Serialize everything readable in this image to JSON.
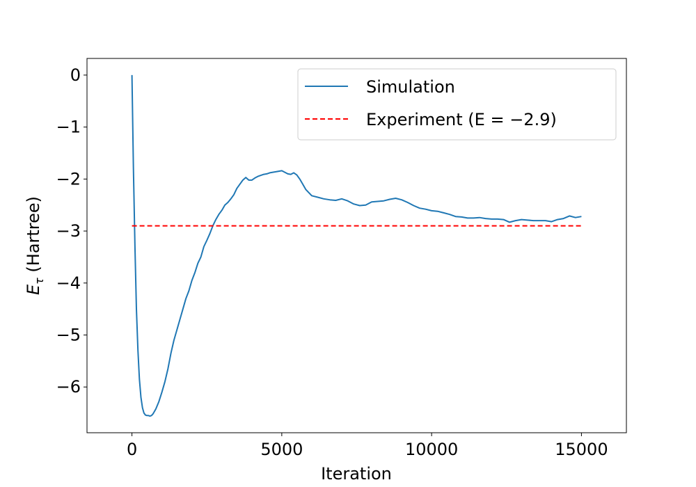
{
  "chart_data": {
    "type": "line",
    "title": "",
    "xlabel": "Iteration",
    "ylabel_main": "E",
    "ylabel_sub": "τ",
    "ylabel_rest": " (Hartree)",
    "xlim": [
      -1500,
      16500
    ],
    "ylim": [
      -6.88,
      0.32
    ],
    "xticks": [
      0,
      5000,
      10000,
      15000
    ],
    "xtick_labels": [
      "0",
      "5000",
      "10000",
      "15000"
    ],
    "yticks": [
      0,
      -1,
      -2,
      -3,
      -4,
      -5,
      -6
    ],
    "ytick_labels": [
      "0",
      "−1",
      "−2",
      "−3",
      "−4",
      "−5",
      "−6"
    ],
    "grid": false,
    "legend_position": "top-right",
    "series": [
      {
        "name": "Simulation",
        "style": "solid",
        "color": "#1f77b4",
        "x": [
          0,
          50,
          100,
          150,
          200,
          250,
          300,
          350,
          400,
          450,
          500,
          550,
          600,
          650,
          700,
          750,
          800,
          900,
          1000,
          1100,
          1200,
          1300,
          1400,
          1500,
          1600,
          1700,
          1800,
          1900,
          2000,
          2100,
          2200,
          2300,
          2400,
          2500,
          2600,
          2700,
          2800,
          2900,
          3000,
          3100,
          3200,
          3300,
          3400,
          3500,
          3600,
          3700,
          3800,
          3900,
          4000,
          4100,
          4200,
          4300,
          4400,
          4500,
          4600,
          4700,
          4800,
          4900,
          5000,
          5100,
          5200,
          5300,
          5400,
          5500,
          5600,
          5700,
          5800,
          5900,
          6000,
          6200,
          6400,
          6600,
          6800,
          7000,
          7200,
          7400,
          7600,
          7800,
          8000,
          8200,
          8400,
          8600,
          8800,
          9000,
          9200,
          9400,
          9600,
          9800,
          10000,
          10200,
          10400,
          10600,
          10800,
          11000,
          11200,
          11400,
          11600,
          11800,
          12000,
          12200,
          12400,
          12600,
          12800,
          13000,
          13200,
          13400,
          13600,
          13800,
          14000,
          14200,
          14400,
          14600,
          14800,
          15000
        ],
        "y": [
          0,
          -1.8,
          -3.3,
          -4.5,
          -5.3,
          -5.85,
          -6.2,
          -6.4,
          -6.5,
          -6.54,
          -6.55,
          -6.55,
          -6.56,
          -6.55,
          -6.52,
          -6.47,
          -6.42,
          -6.28,
          -6.1,
          -5.9,
          -5.65,
          -5.35,
          -5.1,
          -4.9,
          -4.7,
          -4.5,
          -4.3,
          -4.15,
          -3.95,
          -3.8,
          -3.62,
          -3.5,
          -3.3,
          -3.18,
          -3.05,
          -2.9,
          -2.78,
          -2.68,
          -2.6,
          -2.5,
          -2.45,
          -2.38,
          -2.3,
          -2.18,
          -2.1,
          -2.02,
          -1.97,
          -2.02,
          -2.02,
          -1.98,
          -1.95,
          -1.93,
          -1.91,
          -1.9,
          -1.88,
          -1.87,
          -1.86,
          -1.85,
          -1.84,
          -1.87,
          -1.9,
          -1.91,
          -1.88,
          -1.92,
          -2.0,
          -2.1,
          -2.2,
          -2.26,
          -2.32,
          -2.35,
          -2.38,
          -2.4,
          -2.41,
          -2.38,
          -2.42,
          -2.48,
          -2.51,
          -2.5,
          -2.44,
          -2.43,
          -2.42,
          -2.39,
          -2.37,
          -2.4,
          -2.45,
          -2.51,
          -2.56,
          -2.58,
          -2.61,
          -2.62,
          -2.65,
          -2.68,
          -2.72,
          -2.73,
          -2.75,
          -2.75,
          -2.74,
          -2.76,
          -2.77,
          -2.77,
          -2.78,
          -2.83,
          -2.8,
          -2.78,
          -2.79,
          -2.8,
          -2.8,
          -2.8,
          -2.82,
          -2.78,
          -2.76,
          -2.71,
          -2.74,
          -2.72
        ]
      },
      {
        "name": "Experiment (E = −2.9)",
        "style": "dashed",
        "color": "#ff0000",
        "x": [
          0,
          15000
        ],
        "y": [
          -2.9,
          -2.9
        ]
      }
    ]
  }
}
